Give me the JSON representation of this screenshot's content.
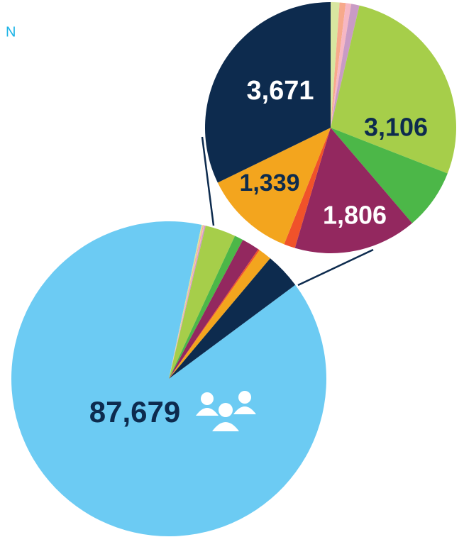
{
  "chart_data": {
    "type": "pie",
    "title": "N",
    "categories": [
      null,
      null,
      null,
      null,
      null,
      null,
      null,
      null,
      null,
      null,
      null
    ],
    "values": [
      87679,
      130,
      90,
      80,
      120,
      3106,
      890,
      1806,
      165,
      1339,
      3671
    ],
    "value_labels": [
      "87,679",
      null,
      null,
      null,
      null,
      "3,106",
      null,
      "1,806",
      null,
      "1,339",
      "3,671"
    ],
    "colors": [
      "#6ccbf3",
      "#d8e6a0",
      "#f7a98b",
      "#f6b7c4",
      "#c99bc5",
      "#a6ce4a",
      "#4cb748",
      "#93285f",
      "#f0522a",
      "#f3a51e",
      "#0d2b4e"
    ]
  }
}
